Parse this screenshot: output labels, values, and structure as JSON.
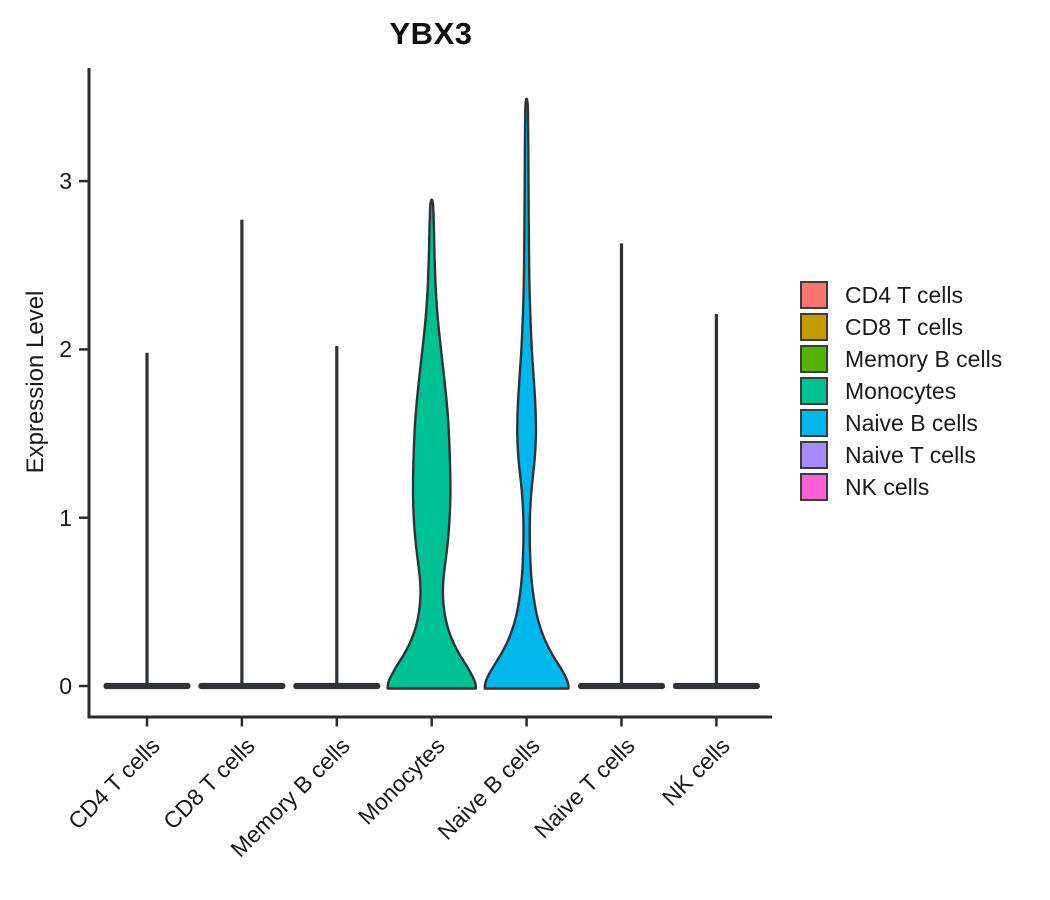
{
  "chart_data": {
    "type": "violin",
    "title": "YBX3",
    "xlabel": "",
    "ylabel": "Expression Level",
    "yticks": [
      0,
      1,
      2,
      3
    ],
    "ylim": [
      0,
      3.6
    ],
    "grid": false,
    "legend_position": "right",
    "categories": [
      "CD4 T cells",
      "CD8 T cells",
      "Memory B cells",
      "Monocytes",
      "Naive B cells",
      "Naive T cells",
      "NK cells"
    ],
    "outline_color": "#2F3337",
    "axis_color": "#2B2B2B",
    "text_color": "#1A1A1A",
    "series": [
      {
        "name": "CD4 T cells",
        "color": "#F8766D",
        "shape": "spike",
        "max_expression": 1.98
      },
      {
        "name": "CD8 T cells",
        "color": "#C49A00",
        "shape": "spike",
        "max_expression": 2.77
      },
      {
        "name": "Memory B cells",
        "color": "#53B400",
        "shape": "spike",
        "max_expression": 2.02
      },
      {
        "name": "Monocytes",
        "color": "#00C094",
        "shape": "violin",
        "max_expression": 2.89,
        "profile": [
          [
            0.0,
            0.98
          ],
          [
            0.03,
            0.96
          ],
          [
            0.07,
            0.88
          ],
          [
            0.12,
            0.78
          ],
          [
            0.18,
            0.63
          ],
          [
            0.25,
            0.49
          ],
          [
            0.32,
            0.385
          ],
          [
            0.4,
            0.305
          ],
          [
            0.48,
            0.26
          ],
          [
            0.56,
            0.245
          ],
          [
            0.64,
            0.26
          ],
          [
            0.72,
            0.295
          ],
          [
            0.8,
            0.335
          ],
          [
            0.9,
            0.375
          ],
          [
            1.0,
            0.4
          ],
          [
            1.1,
            0.415
          ],
          [
            1.25,
            0.415
          ],
          [
            1.4,
            0.4
          ],
          [
            1.55,
            0.375
          ],
          [
            1.7,
            0.33
          ],
          [
            1.85,
            0.27
          ],
          [
            2.0,
            0.205
          ],
          [
            2.15,
            0.145
          ],
          [
            2.3,
            0.1
          ],
          [
            2.45,
            0.075
          ],
          [
            2.6,
            0.058
          ],
          [
            2.75,
            0.047
          ],
          [
            2.89,
            0.03
          ]
        ]
      },
      {
        "name": "Naive B cells",
        "color": "#00B6EB",
        "shape": "violin",
        "max_expression": 3.49,
        "profile": [
          [
            0.0,
            0.93
          ],
          [
            0.03,
            0.91
          ],
          [
            0.08,
            0.82
          ],
          [
            0.14,
            0.68
          ],
          [
            0.2,
            0.54
          ],
          [
            0.27,
            0.41
          ],
          [
            0.34,
            0.31
          ],
          [
            0.42,
            0.225
          ],
          [
            0.5,
            0.17
          ],
          [
            0.6,
            0.12
          ],
          [
            0.7,
            0.09
          ],
          [
            0.8,
            0.075
          ],
          [
            0.9,
            0.068
          ],
          [
            1.0,
            0.072
          ],
          [
            1.1,
            0.088
          ],
          [
            1.2,
            0.12
          ],
          [
            1.3,
            0.165
          ],
          [
            1.4,
            0.195
          ],
          [
            1.5,
            0.21
          ],
          [
            1.6,
            0.205
          ],
          [
            1.7,
            0.19
          ],
          [
            1.8,
            0.165
          ],
          [
            1.9,
            0.14
          ],
          [
            2.0,
            0.115
          ],
          [
            2.15,
            0.09
          ],
          [
            2.3,
            0.07
          ],
          [
            2.5,
            0.055
          ],
          [
            2.7,
            0.05
          ],
          [
            2.9,
            0.045
          ],
          [
            3.1,
            0.04
          ],
          [
            3.3,
            0.034
          ],
          [
            3.49,
            0.027
          ]
        ]
      },
      {
        "name": "Naive T cells",
        "color": "#A58AFF",
        "shape": "spike",
        "max_expression": 2.63
      },
      {
        "name": "NK cells",
        "color": "#FB61D7",
        "shape": "spike",
        "max_expression": 2.21
      }
    ]
  }
}
